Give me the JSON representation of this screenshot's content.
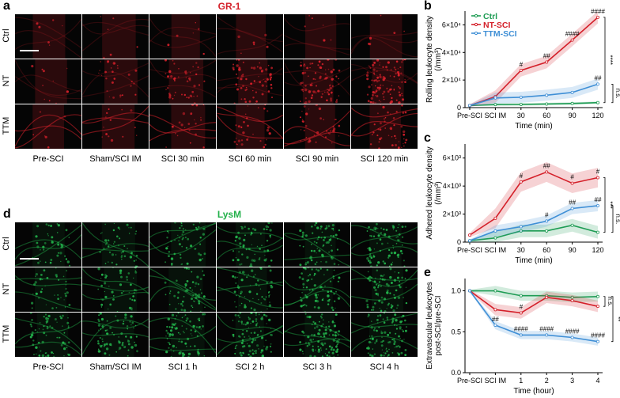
{
  "figure": {
    "panel_letters": [
      "a",
      "b",
      "c",
      "d",
      "e"
    ],
    "panel_a": {
      "stain_title": "GR-1",
      "stain_color": "#d4202a",
      "row_labels": [
        "Ctrl",
        "NT",
        "TTM"
      ],
      "column_labels": [
        "Pre-SCI",
        "Sham/SCI IM",
        "SCI 30 min",
        "SCI 60 min",
        "SCI 90 min",
        "SCI 120 min"
      ]
    },
    "panel_d": {
      "stain_title": "LysM",
      "stain_color": "#22b04a",
      "row_labels": [
        "Ctrl",
        "NT",
        "TTM"
      ],
      "column_labels": [
        "Pre-SCI",
        "Sham/SCI IM",
        "SCI 1 h",
        "SCI 2 h",
        "SCI 3 h",
        "SCI 4 h"
      ]
    }
  },
  "colors": {
    "ctrl": "#1e9c54",
    "nt": "#d4202a",
    "ttm": "#3f8fd6"
  },
  "chart_data": [
    {
      "id": "b",
      "type": "line",
      "legend": [
        {
          "label": "Ctrl",
          "color": "#1e9c54"
        },
        {
          "label": "NT-SCI",
          "color": "#d4202a"
        },
        {
          "label": "TTM-SCI",
          "color": "#3f8fd6"
        }
      ],
      "ylabel_lines": [
        "Rolling leukocyte density",
        "(/mm³)"
      ],
      "xlabel": "Time (min)",
      "categories": [
        "Pre-SCI",
        "SCI IM",
        "30",
        "60",
        "90",
        "120"
      ],
      "y_ticks": [
        {
          "value": 0,
          "label": "0"
        },
        {
          "value": 20000,
          "label": "2×10⁴"
        },
        {
          "value": 40000,
          "label": "4×10⁴"
        },
        {
          "value": 60000,
          "label": "6×10⁴"
        }
      ],
      "ylim": [
        0,
        70000
      ],
      "series": [
        {
          "key": "ctrl",
          "values": [
            1500,
            2200,
            2300,
            2600,
            3000,
            3600
          ],
          "band": 900
        },
        {
          "key": "nt",
          "values": [
            1500,
            8000,
            27000,
            33000,
            49000,
            65500
          ],
          "band": 4500
        },
        {
          "key": "ttm",
          "values": [
            1500,
            7000,
            7500,
            9000,
            11000,
            17000
          ],
          "band": 4000
        }
      ],
      "annotations": [
        {
          "key": "nt",
          "index": 2,
          "text": "#"
        },
        {
          "key": "nt",
          "index": 3,
          "text": "##"
        },
        {
          "key": "nt",
          "index": 4,
          "text": "####"
        },
        {
          "key": "nt",
          "index": 5,
          "text": "####"
        },
        {
          "key": "ttm",
          "index": 5,
          "text": "##"
        }
      ],
      "brackets": [
        {
          "from": "nt",
          "to": "ctrl",
          "text": "****"
        },
        {
          "from": "ttm",
          "to": "ctrl",
          "text": "n.s."
        }
      ]
    },
    {
      "id": "c",
      "type": "line",
      "ylabel_lines": [
        "Adhered leukocyte density",
        "(/mm³)"
      ],
      "xlabel": "Time (min)",
      "categories": [
        "Pre-SCI",
        "SCI IM",
        "30",
        "60",
        "90",
        "120"
      ],
      "y_ticks": [
        {
          "value": 0,
          "label": "0"
        },
        {
          "value": 2000,
          "label": "2×10³"
        },
        {
          "value": 4000,
          "label": "4×10³"
        },
        {
          "value": 6000,
          "label": "6×10³"
        }
      ],
      "ylim": [
        0,
        7000
      ],
      "series": [
        {
          "key": "ctrl",
          "values": [
            100,
            300,
            800,
            800,
            1200,
            700
          ],
          "band": 450
        },
        {
          "key": "nt",
          "values": [
            500,
            1700,
            4300,
            5000,
            4200,
            4600
          ],
          "band": 700
        },
        {
          "key": "ttm",
          "values": [
            100,
            800,
            1100,
            1500,
            2400,
            2600
          ],
          "band": 400
        }
      ],
      "annotations": [
        {
          "key": "nt",
          "index": 2,
          "text": "#"
        },
        {
          "key": "nt",
          "index": 3,
          "text": "##"
        },
        {
          "key": "nt",
          "index": 4,
          "text": "#"
        },
        {
          "key": "nt",
          "index": 5,
          "text": "#"
        },
        {
          "key": "ttm",
          "index": 3,
          "text": "#"
        },
        {
          "key": "ttm",
          "index": 4,
          "text": "##"
        },
        {
          "key": "ttm",
          "index": 5,
          "text": "##"
        }
      ],
      "brackets": [
        {
          "from": "nt",
          "to": "ctrl",
          "text": "***"
        },
        {
          "from": "ttm",
          "to": "ctrl",
          "text": "n.s."
        }
      ]
    },
    {
      "id": "e",
      "type": "line",
      "ylabel_lines": [
        "Extravascular leukocytes",
        "post-SCI/pre-SCI"
      ],
      "xlabel": "Time (hour)",
      "categories": [
        "Pre-SCI",
        "SCI IM",
        "1",
        "2",
        "3",
        "4"
      ],
      "y_ticks": [
        {
          "value": 0.0,
          "label": "0.0"
        },
        {
          "value": 0.5,
          "label": "0.5"
        },
        {
          "value": 1.0,
          "label": "1.0"
        }
      ],
      "ylim": [
        0,
        1.15
      ],
      "series": [
        {
          "key": "ctrl",
          "values": [
            1.0,
            1.0,
            0.94,
            0.94,
            0.92,
            0.93
          ],
          "band": 0.06
        },
        {
          "key": "nt",
          "values": [
            1.0,
            0.77,
            0.73,
            0.92,
            0.88,
            0.81
          ],
          "band": 0.07
        },
        {
          "key": "ttm",
          "values": [
            1.0,
            0.58,
            0.46,
            0.46,
            0.43,
            0.38
          ],
          "band": 0.05
        }
      ],
      "annotations": [
        {
          "key": "nt",
          "index": 2,
          "text": "#"
        },
        {
          "key": "ttm",
          "index": 1,
          "text": "##"
        },
        {
          "key": "ttm",
          "index": 2,
          "text": "####"
        },
        {
          "key": "ttm",
          "index": 3,
          "text": "####"
        },
        {
          "key": "ttm",
          "index": 4,
          "text": "####"
        },
        {
          "key": "ttm",
          "index": 5,
          "text": "####"
        }
      ],
      "brackets": [
        {
          "from": "nt",
          "to": "ctrl",
          "text": "n.s."
        },
        {
          "from": "ttm",
          "to": "ctrl",
          "text": "**"
        }
      ]
    }
  ]
}
